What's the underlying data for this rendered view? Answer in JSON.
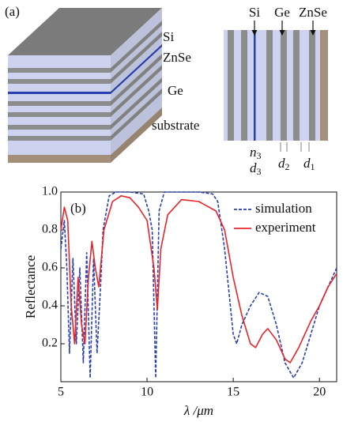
{
  "panel_a": {
    "label": "(a)",
    "stack_labels": [
      "Si",
      "ZnSe",
      "Ge",
      "substrate"
    ],
    "cross_section": {
      "top_labels": [
        "Si",
        "Ge",
        "ZnSe"
      ],
      "bottom_labels": [
        {
          "symbol": "n",
          "sub": "3"
        },
        {
          "symbol": "d",
          "sub": "3"
        },
        {
          "symbol": "d",
          "sub": "2"
        },
        {
          "symbol": "d",
          "sub": "1"
        }
      ]
    }
  },
  "chart_data": {
    "type": "line",
    "panel_label": "(b)",
    "x_label": "λ /μm",
    "y_label": "Reflectance",
    "xlim": [
      5,
      21
    ],
    "xticks": [
      5,
      10,
      15,
      20
    ],
    "ylim": [
      0,
      1
    ],
    "yticks": [
      0.2,
      0.4,
      0.6,
      0.8,
      {
        "value": 1,
        "label": "1.0"
      }
    ],
    "legend": "upper right",
    "series": [
      {
        "name": "simulation",
        "color": "#2a3fb0",
        "dashed": true,
        "x": [
          5,
          5.2,
          5.35,
          5.5,
          5.7,
          5.9,
          6.1,
          6.3,
          6.5,
          6.7,
          6.9,
          7.1,
          7.3,
          7.45,
          7.8,
          8.2,
          9,
          9.8,
          10.1,
          10.3,
          10.5,
          10.7,
          11,
          12,
          13,
          13.8,
          14.1,
          14.5,
          15,
          15.2,
          15.5,
          16,
          16.5,
          17,
          17.5,
          18,
          18.5,
          19,
          19.5,
          20,
          20.5,
          21
        ],
        "values": [
          0.7,
          0.85,
          0.6,
          0.15,
          0.65,
          0.2,
          0.6,
          0.1,
          0.68,
          0.02,
          0.65,
          0.15,
          0.5,
          0.8,
          0.98,
          1.0,
          1.0,
          0.99,
          0.9,
          0.8,
          0.02,
          0.9,
          1.0,
          1.0,
          1.0,
          0.99,
          0.95,
          0.7,
          0.25,
          0.2,
          0.3,
          0.4,
          0.47,
          0.45,
          0.3,
          0.1,
          0.02,
          0.1,
          0.25,
          0.4,
          0.5,
          0.6
        ]
      },
      {
        "name": "experiment",
        "color": "#e8242a",
        "dashed": false,
        "x": [
          5,
          5.2,
          5.4,
          5.6,
          5.8,
          6.0,
          6.2,
          6.4,
          6.6,
          6.8,
          7.0,
          7.2,
          7.5,
          8,
          8.5,
          9,
          9.5,
          10,
          10.4,
          10.6,
          10.8,
          11.2,
          12,
          13,
          14,
          14.5,
          15,
          15.5,
          16,
          16.3,
          16.7,
          17,
          17.5,
          18,
          18.3,
          18.8,
          19.5,
          20,
          20.5,
          21
        ],
        "values": [
          0.8,
          0.92,
          0.85,
          0.4,
          0.2,
          0.55,
          0.3,
          0.2,
          0.55,
          0.74,
          0.6,
          0.5,
          0.8,
          0.95,
          0.98,
          0.97,
          0.92,
          0.85,
          0.6,
          0.38,
          0.7,
          0.88,
          0.96,
          0.95,
          0.9,
          0.8,
          0.55,
          0.35,
          0.2,
          0.18,
          0.25,
          0.28,
          0.22,
          0.12,
          0.1,
          0.18,
          0.32,
          0.4,
          0.5,
          0.57
        ]
      }
    ]
  }
}
